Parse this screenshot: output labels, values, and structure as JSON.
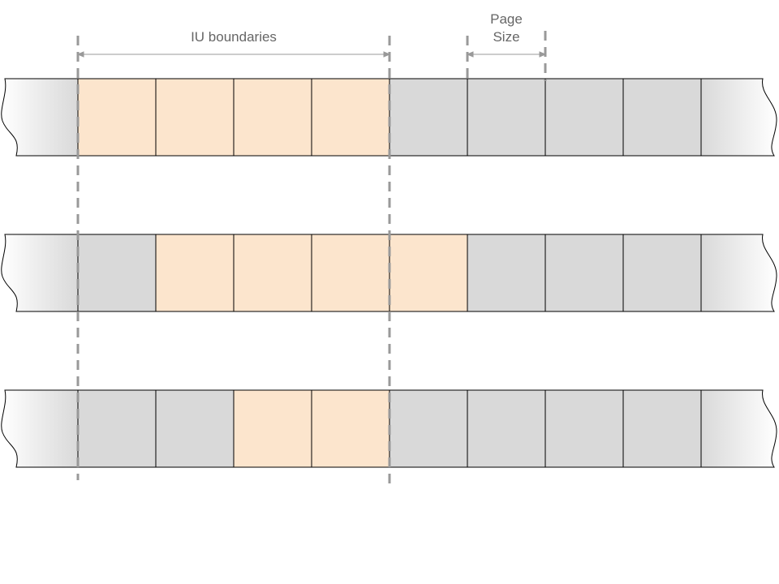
{
  "labels": {
    "iu_boundaries": "IU boundaries",
    "page_size_line1": "Page",
    "page_size_line2": "Size"
  },
  "colors": {
    "highlighted": "#fce5cd",
    "plain": "#d9d9d9",
    "stroke": "#000000",
    "guide": "#999999",
    "annotation": "#666666"
  },
  "rows": [
    {
      "cells": [
        "highlighted",
        "highlighted",
        "highlighted",
        "highlighted",
        "plain",
        "plain",
        "plain",
        "plain"
      ]
    },
    {
      "cells": [
        "plain",
        "highlighted",
        "highlighted",
        "highlighted",
        "highlighted",
        "plain",
        "plain",
        "plain"
      ]
    },
    {
      "cells": [
        "plain",
        "plain",
        "highlighted",
        "highlighted",
        "plain",
        "plain",
        "plain",
        "plain"
      ]
    }
  ]
}
